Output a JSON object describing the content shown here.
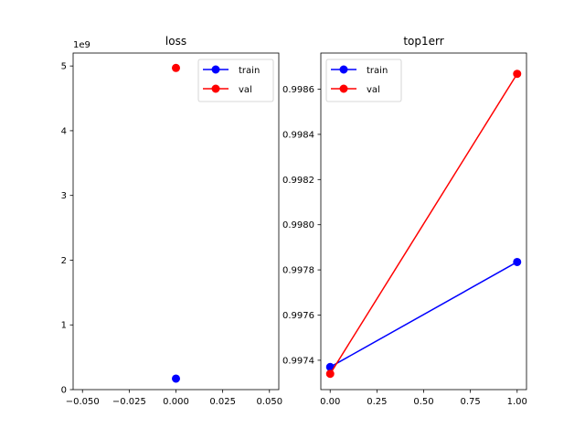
{
  "chart_data": [
    {
      "type": "line",
      "title": "loss",
      "xlabel": "",
      "ylabel": "",
      "y_offset_label": "1e9",
      "xlim": [
        -0.055,
        0.055
      ],
      "ylim": [
        -0.0,
        5.2
      ],
      "x_ticks": [
        -0.05,
        -0.025,
        0.0,
        0.025,
        0.05
      ],
      "x_tick_labels": [
        "−0.050",
        "−0.025",
        "0.000",
        "0.025",
        "0.050"
      ],
      "y_ticks": [
        0,
        1,
        2,
        3,
        4,
        5
      ],
      "y_tick_labels": [
        "0",
        "1",
        "2",
        "3",
        "4",
        "5"
      ],
      "series": [
        {
          "name": "train",
          "color": "#0000ff",
          "x": [
            0.0
          ],
          "y": [
            0.17
          ]
        },
        {
          "name": "val",
          "color": "#ff0000",
          "x": [
            0.0
          ],
          "y": [
            4.97
          ]
        }
      ],
      "legend": "upper right"
    },
    {
      "type": "line",
      "title": "top1err",
      "xlabel": "",
      "ylabel": "",
      "xlim": [
        -0.05,
        1.05
      ],
      "ylim": [
        0.99727,
        0.99876
      ],
      "x_ticks": [
        0.0,
        0.25,
        0.5,
        0.75,
        1.0
      ],
      "x_tick_labels": [
        "0.00",
        "0.25",
        "0.50",
        "0.75",
        "1.00"
      ],
      "y_ticks": [
        0.9974,
        0.9976,
        0.9978,
        0.998,
        0.9982,
        0.9984,
        0.9986
      ],
      "y_tick_labels": [
        "0.9974",
        "0.9976",
        "0.9978",
        "0.9980",
        "0.9982",
        "0.9984",
        "0.9986"
      ],
      "series": [
        {
          "name": "train",
          "color": "#0000ff",
          "x": [
            0.0,
            1.0
          ],
          "y": [
            0.99737,
            0.997835
          ]
        },
        {
          "name": "val",
          "color": "#ff0000",
          "x": [
            0.0,
            1.0
          ],
          "y": [
            0.99734,
            0.998668
          ]
        }
      ],
      "legend": "upper left"
    }
  ]
}
